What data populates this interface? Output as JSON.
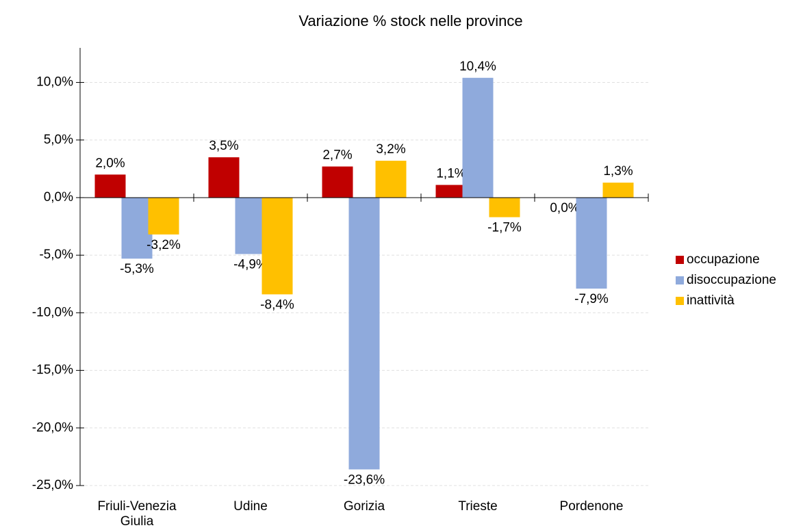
{
  "chart_data": {
    "type": "bar",
    "title": "Variazione % stock nelle province",
    "categories": [
      "Friuli-Venezia Giulia",
      "Udine",
      "Gorizia",
      "Trieste",
      "Pordenone"
    ],
    "series": [
      {
        "name": "occupazione",
        "color": "#c00000",
        "values": [
          2.0,
          3.5,
          2.7,
          1.1,
          0.0
        ],
        "value_labels": [
          "2,0%",
          "3,5%",
          "2,7%",
          "1,1%",
          "0,0%"
        ]
      },
      {
        "name": "disoccupazione",
        "color": "#8faadc",
        "values": [
          -5.3,
          -4.9,
          -23.6,
          10.4,
          -7.9
        ],
        "value_labels": [
          "-5,3%",
          "-4,9%",
          "-23,6%",
          "10,4%",
          "-7,9%"
        ]
      },
      {
        "name": "inattività",
        "color": "#ffc000",
        "values": [
          -3.2,
          -8.4,
          3.2,
          -1.7,
          1.3
        ],
        "value_labels": [
          "-3,2%",
          "-8,4%",
          "3,2%",
          "-1,7%",
          "1,3%"
        ]
      }
    ],
    "ylim": [
      -25,
      13
    ],
    "yticks": [
      {
        "value": -25,
        "label": "-25,0%"
      },
      {
        "value": -20,
        "label": "-20,0%"
      },
      {
        "value": -15,
        "label": "-15,0%"
      },
      {
        "value": -10,
        "label": "-10,0%"
      },
      {
        "value": -5,
        "label": "-5,0%"
      },
      {
        "value": 0,
        "label": "0,0%"
      },
      {
        "value": 5,
        "label": "5,0%"
      },
      {
        "value": 10,
        "label": "10,0%"
      }
    ],
    "grid": true,
    "legend": "right"
  }
}
